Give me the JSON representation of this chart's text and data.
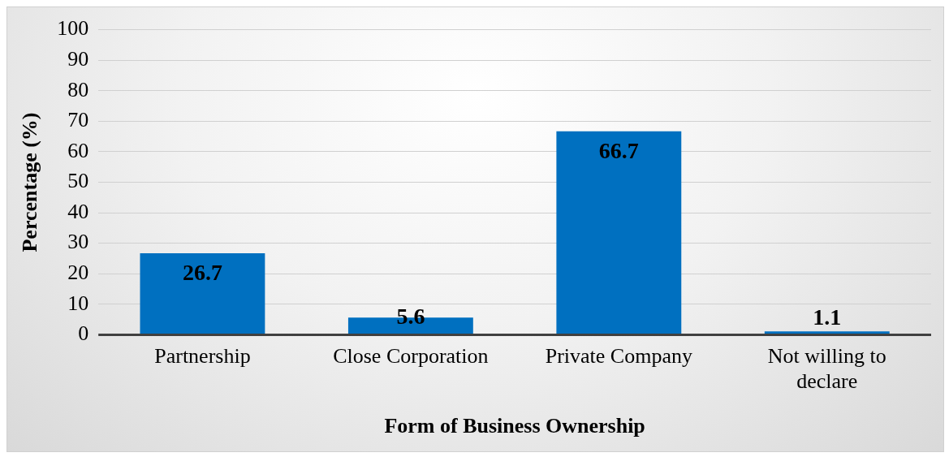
{
  "chart_data": {
    "type": "bar",
    "xlabel": "Form of Business Ownership",
    "ylabel": "Percentage (%)",
    "categories": [
      "Partnership",
      "Close Corporation",
      "Private Company",
      "Not willing to declare"
    ],
    "values": [
      26.7,
      5.6,
      66.7,
      1.1
    ],
    "color": "#0070c0",
    "ylim": [
      0,
      100
    ],
    "yticks": [
      0,
      10,
      20,
      30,
      40,
      50,
      60,
      70,
      80,
      90,
      100
    ],
    "grid": "y",
    "legend": false,
    "data_labels": true
  }
}
